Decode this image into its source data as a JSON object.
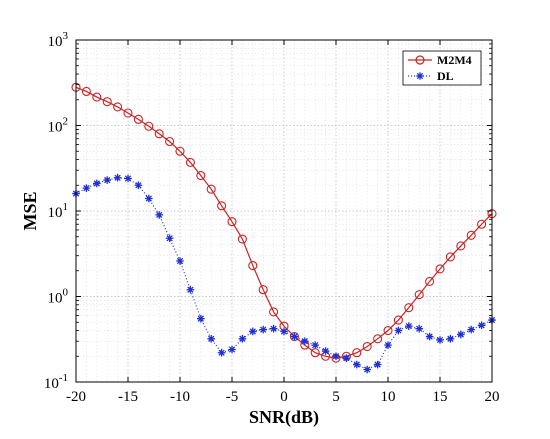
{
  "chart_data": {
    "type": "line",
    "xlabel": "SNR(dB)",
    "ylabel": "MSE",
    "xlim": [
      -20,
      20
    ],
    "ylim": [
      0.1,
      1000
    ],
    "yscale": "log",
    "grid": true,
    "legend_position": "top-right",
    "x_ticks": [
      -20,
      -15,
      -10,
      -5,
      0,
      5,
      10,
      15,
      20
    ],
    "x_tick_labels": [
      "-20",
      "-15",
      "-10",
      "-5",
      "0",
      "5",
      "10",
      "15",
      "20"
    ],
    "y_ticks": [
      {
        "value": 1000,
        "base": "10",
        "exp": "3"
      },
      {
        "value": 100,
        "base": "10",
        "exp": "2"
      },
      {
        "value": 10,
        "base": "10",
        "exp": "1"
      },
      {
        "value": 1,
        "base": "10",
        "exp": "0"
      },
      {
        "value": 0.1,
        "base": "10",
        "exp": "-1"
      }
    ],
    "x": [
      -20,
      -19,
      -18,
      -17,
      -16,
      -15,
      -14,
      -13,
      -12,
      -11,
      -10,
      -9,
      -8,
      -7,
      -6,
      -5,
      -4,
      -3,
      -2,
      -1,
      0,
      1,
      2,
      3,
      4,
      5,
      6,
      7,
      8,
      9,
      10,
      11,
      12,
      13,
      14,
      15,
      16,
      17,
      18,
      19,
      20
    ],
    "series": [
      {
        "name": "M2M4",
        "color": "#cc2222",
        "line_style": "solid",
        "marker": "circle",
        "values": [
          280,
          250,
          215,
          190,
          165,
          140,
          118,
          98,
          80,
          65,
          50,
          37,
          26,
          18,
          11.5,
          7.5,
          4.7,
          2.3,
          1.2,
          0.66,
          0.45,
          0.34,
          0.27,
          0.22,
          0.2,
          0.19,
          0.2,
          0.22,
          0.26,
          0.32,
          0.4,
          0.53,
          0.74,
          1.05,
          1.5,
          2.1,
          2.9,
          3.9,
          5.2,
          7.0,
          9.3
        ]
      },
      {
        "name": "DL",
        "color": "#1f2fd6",
        "line_style": "dotted",
        "marker": "star",
        "values": [
          16,
          18.5,
          21,
          23,
          24.5,
          24,
          20,
          14,
          9,
          4.8,
          2.6,
          1.2,
          0.55,
          0.32,
          0.22,
          0.24,
          0.32,
          0.39,
          0.41,
          0.42,
          0.39,
          0.34,
          0.3,
          0.27,
          0.23,
          0.2,
          0.19,
          0.16,
          0.14,
          0.16,
          0.27,
          0.4,
          0.45,
          0.42,
          0.34,
          0.31,
          0.32,
          0.36,
          0.41,
          0.46,
          0.53
        ]
      }
    ]
  }
}
